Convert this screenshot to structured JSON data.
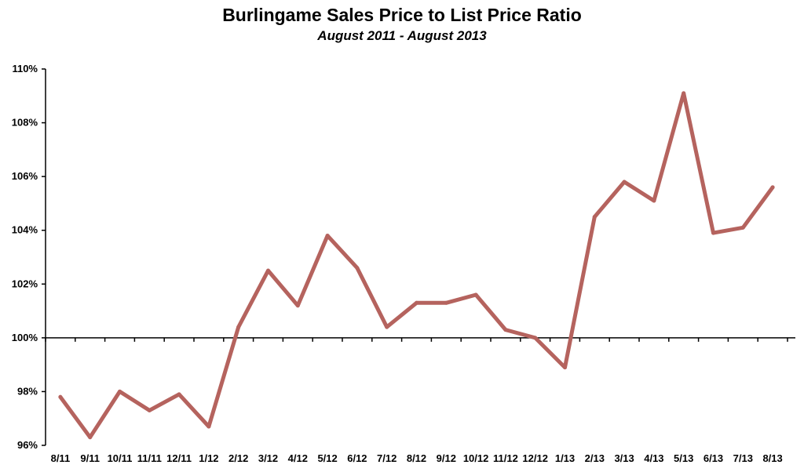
{
  "chart_data": {
    "type": "line",
    "title": "Burlingame Sales Price to List Price Ratio",
    "subtitle": "August 2011 - August 2013",
    "xlabel": "",
    "ylabel": "",
    "ylim": [
      96,
      110
    ],
    "y_ticks": [
      "96%",
      "98%",
      "100%",
      "102%",
      "104%",
      "106%",
      "108%",
      "110%"
    ],
    "y_tick_values": [
      96,
      98,
      100,
      102,
      104,
      106,
      108,
      110
    ],
    "x_axis_at": 100,
    "grid": false,
    "legend": "none",
    "line_color": "#b5635e",
    "categories": [
      "8/11",
      "9/11",
      "10/11",
      "11/11",
      "12/11",
      "1/12",
      "2/12",
      "3/12",
      "4/12",
      "5/12",
      "6/12",
      "7/12",
      "8/12",
      "9/12",
      "10/12",
      "11/12",
      "12/12",
      "1/13",
      "2/13",
      "3/13",
      "4/13",
      "5/13",
      "6/13",
      "7/13",
      "8/13"
    ],
    "series": [
      {
        "values": [
          97.8,
          96.3,
          98.0,
          97.3,
          97.9,
          96.7,
          100.4,
          102.5,
          101.2,
          103.8,
          102.6,
          100.4,
          101.3,
          101.3,
          101.6,
          100.3,
          100.0,
          98.9,
          104.5,
          105.8,
          105.1,
          109.1,
          103.9,
          104.1,
          105.6
        ]
      }
    ]
  }
}
